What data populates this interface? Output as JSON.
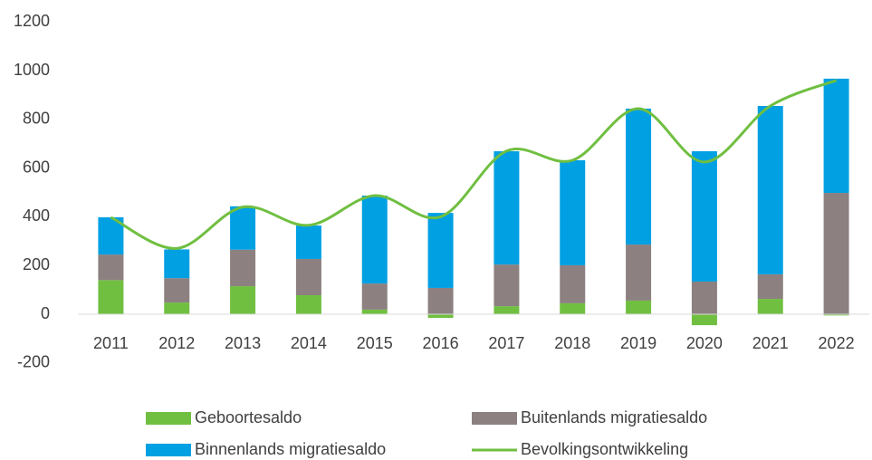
{
  "chart_data": {
    "type": "bar",
    "categories": [
      "2011",
      "2012",
      "2013",
      "2014",
      "2015",
      "2016",
      "2017",
      "2018",
      "2019",
      "2020",
      "2021",
      "2022"
    ],
    "series": [
      {
        "name": "Geboortesaldo",
        "color": "#70bf41",
        "values": [
          140,
          48,
          115,
          78,
          19,
          -15,
          33,
          45,
          56,
          -45,
          63,
          -5
        ]
      },
      {
        "name": "Buitenlands migratiesaldo",
        "color": "#8c8080",
        "values": [
          105,
          100,
          150,
          149,
          107,
          108,
          171,
          156,
          230,
          134,
          101,
          498
        ]
      },
      {
        "name": "Binnenlands migratiesaldo",
        "color": "#00a0e3",
        "values": [
          153,
          118,
          178,
          137,
          361,
          308,
          465,
          431,
          558,
          535,
          691,
          469
        ]
      },
      {
        "name": "Bevolkingsontwikkeling",
        "color": "#70bf41",
        "type": "line",
        "values": [
          398,
          270,
          440,
          365,
          487,
          400,
          670,
          632,
          844,
          625,
          855,
          960
        ]
      }
    ],
    "ylim": [
      -200,
      1200
    ],
    "yticks": [
      -200,
      0,
      200,
      400,
      600,
      800,
      1000,
      1200
    ],
    "grid": false
  }
}
